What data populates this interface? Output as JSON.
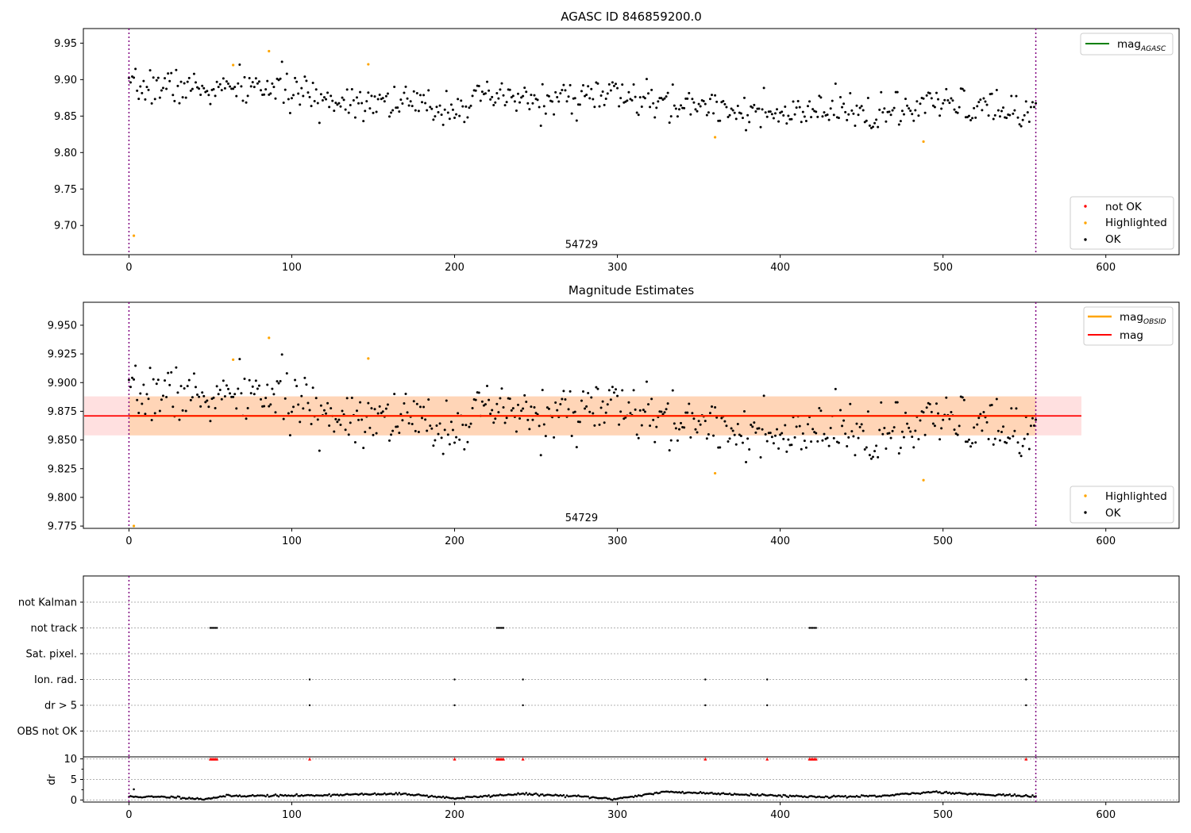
{
  "chart_data": [
    {
      "type": "scatter",
      "title": "AGASC ID 846859200.0",
      "xlim": [
        -28,
        645
      ],
      "ylim": [
        9.66,
        9.97
      ],
      "xticks": [
        0,
        100,
        200,
        300,
        400,
        500,
        600
      ],
      "yticks": [
        9.7,
        9.75,
        9.8,
        9.85,
        9.9,
        9.95
      ],
      "ytick_labels": [
        "9.70",
        "9.75",
        "9.80",
        "9.85",
        "9.90",
        "9.95"
      ],
      "vlines": [
        0,
        557
      ],
      "annotation": {
        "text": "54729",
        "x": 278,
        "y": 9.667
      },
      "ok_trend": {
        "x_start": 0,
        "x_end": 557,
        "y_start": 9.885,
        "y_end": 9.852,
        "scatter": 0.012,
        "seed": 7
      },
      "series": [
        {
          "name": "not OK",
          "color": "#ff0000",
          "points": []
        },
        {
          "name": "Highlighted",
          "color": "#ffa500",
          "points": [
            [
              3,
              9.686
            ],
            [
              64,
              9.92
            ],
            [
              86,
              9.939
            ],
            [
              147,
              9.921
            ],
            [
              360,
              9.821
            ],
            [
              488,
              9.815
            ]
          ]
        },
        {
          "name": "OK",
          "color": "#000000"
        }
      ],
      "legend_top": {
        "label": "mag",
        "sub": "AGASC",
        "color": "#008000"
      },
      "legend_bottom": [
        "not OK",
        "Highlighted",
        "OK"
      ]
    },
    {
      "type": "scatter",
      "title": "Magnitude Estimates",
      "xlim": [
        -28,
        645
      ],
      "ylim": [
        9.773,
        9.97
      ],
      "xticks": [
        0,
        100,
        200,
        300,
        400,
        500,
        600
      ],
      "yticks": [
        9.775,
        9.8,
        9.825,
        9.85,
        9.875,
        9.9,
        9.925,
        9.95
      ],
      "ytick_labels": [
        "9.775",
        "9.800",
        "9.825",
        "9.850",
        "9.875",
        "9.900",
        "9.925",
        "9.950"
      ],
      "vlines": [
        0,
        557
      ],
      "annotation": {
        "text": "54729",
        "x": 278,
        "y": 9.78
      },
      "mag": 9.871,
      "mag_band": [
        9.854,
        9.888
      ],
      "mag_span": [
        -28,
        585
      ],
      "obsid_mag": 9.871,
      "obsid_band": [
        9.854,
        9.888
      ],
      "obsid_span": [
        0,
        557
      ],
      "ok_trend": {
        "x_start": 0,
        "x_end": 557,
        "y_start": 9.885,
        "y_end": 9.852,
        "scatter": 0.012,
        "seed": 7
      },
      "series": [
        {
          "name": "Highlighted",
          "color": "#ffa500",
          "points": [
            [
              3,
              9.774
            ],
            [
              64,
              9.92
            ],
            [
              86,
              9.939
            ],
            [
              147,
              9.921
            ],
            [
              360,
              9.821
            ],
            [
              488,
              9.815
            ]
          ]
        },
        {
          "name": "OK",
          "color": "#000000"
        }
      ],
      "legend_top": [
        {
          "label": "mag",
          "sub": "OBSID",
          "color": "#ffa500"
        },
        {
          "label": "mag",
          "sub": "",
          "color": "#ff0000"
        }
      ],
      "legend_bottom": [
        "Highlighted",
        "OK"
      ]
    },
    {
      "type": "scatter",
      "xlim": [
        -28,
        645
      ],
      "xticks": [
        0,
        100,
        200,
        300,
        400,
        500,
        600
      ],
      "vlines": [
        0,
        557
      ],
      "categories": [
        "not Kalman",
        "not track",
        "Sat. pixel.",
        "Ion. rad.",
        "dr > 5",
        "OBS not OK"
      ],
      "flags": {
        "not Kalman": [],
        "not track": [
          50,
          51,
          52,
          53,
          54,
          226,
          227,
          228,
          229,
          230,
          418,
          419,
          420,
          421,
          422
        ],
        "Sat. pixel.": [],
        "Ion. rad.": [
          111,
          200,
          242,
          354,
          392,
          551
        ],
        "dr > 5": [
          111,
          200,
          242,
          354,
          392,
          551
        ],
        "OBS not OK": []
      }
    },
    {
      "type": "scatter",
      "ylabel": "dr",
      "xlim": [
        -28,
        645
      ],
      "ylim": [
        -0.5,
        10.5
      ],
      "yticks": [
        0,
        5,
        10
      ],
      "xticks": [
        0,
        100,
        200,
        300,
        400,
        500,
        600
      ],
      "vlines": [
        0,
        557
      ],
      "clipped_color": "#ff0000",
      "clipped_x": [
        50,
        51,
        52,
        53,
        54,
        111,
        200,
        226,
        227,
        228,
        229,
        230,
        242,
        354,
        392,
        418,
        419,
        420,
        421,
        422,
        551
      ],
      "dr_profile": [
        [
          0,
          0.8
        ],
        [
          30,
          0.7
        ],
        [
          45,
          0.2
        ],
        [
          60,
          1.0
        ],
        [
          110,
          1.1
        ],
        [
          130,
          1.3
        ],
        [
          170,
          1.5
        ],
        [
          200,
          0.4
        ],
        [
          240,
          1.5
        ],
        [
          280,
          0.8
        ],
        [
          297,
          0.2
        ],
        [
          330,
          2.0
        ],
        [
          360,
          1.6
        ],
        [
          390,
          1.2
        ],
        [
          420,
          0.8
        ],
        [
          460,
          0.9
        ],
        [
          495,
          2.0
        ],
        [
          520,
          1.4
        ],
        [
          540,
          1.2
        ],
        [
          557,
          0.8
        ]
      ],
      "dr_outlier": [
        3,
        2.6
      ]
    }
  ]
}
